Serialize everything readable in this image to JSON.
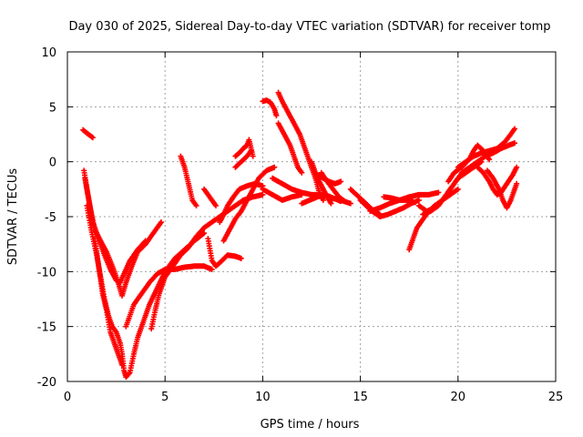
{
  "chart_data": {
    "type": "scatter",
    "title": "Day 030 of 2025, Sidereal Day-to-day VTEC variation (SDTVAR) for receiver tomp",
    "xlabel": "GPS time / hours",
    "ylabel": "SDTVAR / TECUs",
    "xlim": [
      0,
      25
    ],
    "ylim": [
      -20,
      10
    ],
    "xticks": [
      0,
      5,
      10,
      15,
      20,
      25
    ],
    "yticks": [
      -20,
      -15,
      -10,
      -5,
      0,
      5,
      10
    ],
    "grid": true,
    "marker": "+",
    "color": "#ff0000",
    "series": [
      {
        "points": [
          [
            0.8,
            2.9
          ],
          [
            1.0,
            2.6
          ],
          [
            1.3,
            2.2
          ]
        ]
      },
      {
        "points": [
          [
            0.85,
            -0.8
          ],
          [
            1.0,
            -2.5
          ],
          [
            1.2,
            -4.5
          ],
          [
            1.4,
            -6.2
          ],
          [
            1.7,
            -7.2
          ],
          [
            2.0,
            -8.2
          ],
          [
            2.3,
            -9.5
          ],
          [
            2.6,
            -11.0
          ],
          [
            2.8,
            -12.2
          ],
          [
            3.0,
            -11.0
          ],
          [
            3.3,
            -9.5
          ],
          [
            3.6,
            -8.2
          ],
          [
            4.0,
            -7.5
          ],
          [
            4.4,
            -6.5
          ],
          [
            4.8,
            -5.5
          ]
        ]
      },
      {
        "points": [
          [
            0.9,
            -1.5
          ],
          [
            1.1,
            -3.5
          ],
          [
            1.3,
            -5.5
          ],
          [
            1.6,
            -7.0
          ],
          [
            1.9,
            -8.5
          ],
          [
            2.2,
            -9.8
          ],
          [
            2.5,
            -10.8
          ],
          [
            2.7,
            -11.0
          ],
          [
            2.9,
            -10.2
          ],
          [
            3.2,
            -9.0
          ],
          [
            3.6,
            -8.0
          ],
          [
            4.0,
            -7.2
          ]
        ]
      },
      {
        "points": [
          [
            1.0,
            -4.0
          ],
          [
            1.2,
            -6.0
          ],
          [
            1.5,
            -8.5
          ],
          [
            1.7,
            -10.5
          ],
          [
            1.9,
            -12.5
          ],
          [
            2.1,
            -14.0
          ],
          [
            2.3,
            -15.0
          ],
          [
            2.5,
            -15.5
          ],
          [
            2.7,
            -16.5
          ],
          [
            2.8,
            -17.5
          ],
          [
            2.9,
            -19.0
          ],
          [
            3.0,
            -19.6
          ],
          [
            3.2,
            -19.2
          ],
          [
            3.4,
            -17.5
          ],
          [
            3.6,
            -16.0
          ],
          [
            3.9,
            -14.5
          ],
          [
            4.2,
            -13.0
          ],
          [
            4.6,
            -11.5
          ],
          [
            5.0,
            -10.0
          ],
          [
            5.5,
            -8.8
          ],
          [
            6.0,
            -8.0
          ],
          [
            6.5,
            -7.2
          ],
          [
            7.0,
            -6.5
          ]
        ]
      },
      {
        "points": [
          [
            1.4,
            -7.0
          ],
          [
            1.6,
            -9.5
          ],
          [
            1.8,
            -12.0
          ],
          [
            2.0,
            -13.5
          ],
          [
            2.2,
            -15.5
          ],
          [
            2.4,
            -16.5
          ],
          [
            2.6,
            -17.5
          ],
          [
            2.8,
            -18.5
          ]
        ]
      },
      {
        "points": [
          [
            4.3,
            -15.2
          ],
          [
            4.5,
            -13.5
          ],
          [
            4.7,
            -12.0
          ],
          [
            5.0,
            -10.5
          ],
          [
            5.4,
            -9.5
          ],
          [
            5.8,
            -8.5
          ],
          [
            6.2,
            -7.8
          ],
          [
            6.6,
            -6.8
          ],
          [
            7.0,
            -6.0
          ],
          [
            7.4,
            -5.5
          ],
          [
            7.8,
            -5.0
          ],
          [
            8.2,
            -4.5
          ],
          [
            8.6,
            -4.0
          ],
          [
            9.0,
            -3.5
          ],
          [
            9.5,
            -3.2
          ],
          [
            10.0,
            -3.0
          ]
        ]
      },
      {
        "points": [
          [
            3.0,
            -15.0
          ],
          [
            3.4,
            -13.0
          ],
          [
            3.8,
            -12.0
          ],
          [
            4.2,
            -11.0
          ],
          [
            4.6,
            -10.2
          ],
          [
            5.0,
            -9.8
          ],
          [
            5.5,
            -9.8
          ],
          [
            6.0,
            -9.6
          ],
          [
            6.5,
            -9.5
          ],
          [
            7.0,
            -9.5
          ],
          [
            7.4,
            -9.8
          ]
        ]
      },
      {
        "points": [
          [
            5.8,
            0.5
          ],
          [
            6.0,
            -0.5
          ],
          [
            6.2,
            -2.0
          ],
          [
            6.4,
            -3.5
          ],
          [
            6.6,
            -4.0
          ]
        ]
      },
      {
        "points": [
          [
            7.0,
            -2.5
          ],
          [
            7.2,
            -3.0
          ],
          [
            7.4,
            -3.5
          ],
          [
            7.6,
            -4.0
          ]
        ]
      },
      {
        "points": [
          [
            7.2,
            -7.0
          ],
          [
            7.4,
            -9.0
          ],
          [
            7.6,
            -9.5
          ],
          [
            7.8,
            -9.2
          ],
          [
            8.2,
            -8.5
          ],
          [
            8.6,
            -8.6
          ],
          [
            8.9,
            -8.8
          ]
        ]
      },
      {
        "points": [
          [
            7.8,
            -5.5
          ],
          [
            8.0,
            -4.8
          ],
          [
            8.2,
            -4.0
          ],
          [
            8.5,
            -3.2
          ],
          [
            8.8,
            -2.5
          ],
          [
            9.2,
            -2.2
          ],
          [
            9.6,
            -2.0
          ],
          [
            10.0,
            -2.2
          ]
        ]
      },
      {
        "points": [
          [
            8.0,
            -7.2
          ],
          [
            8.3,
            -6.2
          ],
          [
            8.6,
            -5.2
          ],
          [
            8.9,
            -4.5
          ],
          [
            9.2,
            -3.5
          ],
          [
            9.5,
            -2.5
          ],
          [
            9.8,
            -1.5
          ],
          [
            10.2,
            -0.8
          ],
          [
            10.6,
            -0.5
          ]
        ]
      },
      {
        "points": [
          [
            8.6,
            0.5
          ],
          [
            8.8,
            0.8
          ],
          [
            9.0,
            1.2
          ],
          [
            9.2,
            1.5
          ],
          [
            9.3,
            2.0
          ],
          [
            9.5,
            0.5
          ]
        ]
      },
      {
        "points": [
          [
            8.6,
            -0.5
          ],
          [
            8.9,
            0.0
          ],
          [
            9.2,
            0.5
          ],
          [
            9.4,
            1.0
          ]
        ]
      },
      {
        "points": [
          [
            10.0,
            5.5
          ],
          [
            10.2,
            5.6
          ],
          [
            10.4,
            5.4
          ],
          [
            10.6,
            4.8
          ],
          [
            10.7,
            4.2
          ]
        ]
      },
      {
        "points": [
          [
            10.0,
            -2.5
          ],
          [
            10.5,
            -3.0
          ],
          [
            11.0,
            -3.5
          ],
          [
            11.5,
            -3.2
          ],
          [
            12.0,
            -3.0
          ]
        ]
      },
      {
        "points": [
          [
            10.8,
            6.3
          ],
          [
            11.0,
            5.5
          ],
          [
            11.3,
            4.5
          ],
          [
            11.6,
            3.5
          ],
          [
            11.9,
            2.5
          ],
          [
            12.1,
            1.5
          ],
          [
            12.3,
            0.5
          ],
          [
            12.5,
            -0.5
          ],
          [
            12.7,
            -1.5
          ],
          [
            12.9,
            -2.8
          ],
          [
            13.1,
            -3.5
          ]
        ]
      },
      {
        "points": [
          [
            10.8,
            3.5
          ],
          [
            11.1,
            2.5
          ],
          [
            11.4,
            1.5
          ],
          [
            11.6,
            0.5
          ],
          [
            11.8,
            -0.5
          ],
          [
            12.0,
            -1.0
          ]
        ]
      },
      {
        "points": [
          [
            10.5,
            -1.5
          ],
          [
            11.0,
            -2.0
          ],
          [
            11.5,
            -2.5
          ],
          [
            12.0,
            -2.8
          ],
          [
            12.5,
            -3.0
          ],
          [
            13.0,
            -3.0
          ],
          [
            13.5,
            -3.3
          ],
          [
            14.0,
            -3.5
          ],
          [
            14.5,
            -3.8
          ]
        ]
      },
      {
        "points": [
          [
            12.5,
            0.0
          ],
          [
            12.7,
            -1.0
          ],
          [
            12.9,
            -1.8
          ],
          [
            13.1,
            -2.5
          ],
          [
            13.3,
            -3.2
          ],
          [
            13.5,
            -3.8
          ]
        ]
      },
      {
        "points": [
          [
            12.8,
            -1.2
          ],
          [
            13.1,
            -1.5
          ],
          [
            13.4,
            -1.8
          ],
          [
            13.7,
            -2.0
          ],
          [
            14.0,
            -1.8
          ]
        ]
      },
      {
        "points": [
          [
            13.0,
            -1.0
          ],
          [
            13.3,
            -1.8
          ],
          [
            13.6,
            -2.5
          ],
          [
            13.9,
            -3.2
          ],
          [
            14.2,
            -3.6
          ]
        ]
      },
      {
        "points": [
          [
            12.0,
            -3.8
          ],
          [
            12.4,
            -3.5
          ],
          [
            12.8,
            -3.2
          ],
          [
            13.2,
            -3.0
          ],
          [
            13.6,
            -3.3
          ],
          [
            14.0,
            -3.6
          ]
        ]
      },
      {
        "points": [
          [
            14.5,
            -2.5
          ],
          [
            14.8,
            -3.0
          ],
          [
            15.1,
            -3.5
          ],
          [
            15.4,
            -4.0
          ],
          [
            15.7,
            -4.5
          ],
          [
            16.0,
            -4.8
          ]
        ]
      },
      {
        "points": [
          [
            15.0,
            -3.5
          ],
          [
            15.3,
            -4.0
          ],
          [
            15.6,
            -4.5
          ],
          [
            16.0,
            -5.0
          ],
          [
            16.4,
            -4.8
          ],
          [
            16.8,
            -4.5
          ],
          [
            17.2,
            -4.2
          ],
          [
            17.6,
            -3.8
          ],
          [
            18.0,
            -3.5
          ]
        ]
      },
      {
        "points": [
          [
            15.5,
            -4.5
          ],
          [
            16.0,
            -4.2
          ],
          [
            16.5,
            -3.8
          ],
          [
            17.0,
            -3.5
          ],
          [
            17.5,
            -3.2
          ],
          [
            18.0,
            -3.0
          ],
          [
            18.5,
            -3.0
          ],
          [
            19.0,
            -2.8
          ]
        ]
      },
      {
        "points": [
          [
            16.2,
            -3.2
          ],
          [
            16.6,
            -3.3
          ],
          [
            17.0,
            -3.5
          ],
          [
            17.4,
            -3.5
          ],
          [
            17.8,
            -3.7
          ]
        ]
      },
      {
        "points": [
          [
            17.5,
            -8.0
          ],
          [
            17.7,
            -7.0
          ],
          [
            17.9,
            -6.0
          ],
          [
            18.1,
            -5.5
          ],
          [
            18.3,
            -5.0
          ],
          [
            18.5,
            -4.5
          ],
          [
            18.8,
            -4.0
          ],
          [
            19.2,
            -3.5
          ],
          [
            19.6,
            -3.0
          ],
          [
            20.0,
            -2.5
          ]
        ]
      },
      {
        "points": [
          [
            18.0,
            -4.0
          ],
          [
            18.4,
            -4.5
          ],
          [
            18.8,
            -4.2
          ],
          [
            19.2,
            -3.5
          ],
          [
            19.6,
            -2.5
          ],
          [
            20.0,
            -1.5
          ],
          [
            20.4,
            -1.0
          ],
          [
            20.8,
            -0.5
          ],
          [
            21.2,
            0.0
          ]
        ]
      },
      {
        "points": [
          [
            18.2,
            -4.8
          ],
          [
            18.6,
            -4.5
          ],
          [
            19.0,
            -4.0
          ],
          [
            19.4,
            -3.0
          ],
          [
            19.8,
            -2.0
          ],
          [
            20.2,
            -1.0
          ],
          [
            20.6,
            -0.5
          ],
          [
            21.0,
            0.0
          ],
          [
            21.4,
            0.5
          ],
          [
            21.8,
            0.8
          ],
          [
            22.2,
            1.2
          ],
          [
            22.6,
            1.5
          ],
          [
            22.9,
            1.7
          ]
        ]
      },
      {
        "points": [
          [
            19.5,
            -1.8
          ],
          [
            19.8,
            -1.0
          ],
          [
            20.2,
            -0.5
          ],
          [
            20.6,
            0.3
          ],
          [
            20.8,
            1.0
          ],
          [
            21.0,
            1.5
          ],
          [
            21.3,
            1.0
          ],
          [
            21.6,
            0.2
          ]
        ]
      },
      {
        "points": [
          [
            20.0,
            -0.5
          ],
          [
            20.4,
            0.0
          ],
          [
            20.8,
            0.5
          ],
          [
            21.2,
            0.8
          ],
          [
            21.6,
            1.0
          ],
          [
            22.0,
            1.2
          ],
          [
            22.4,
            1.8
          ],
          [
            22.7,
            2.5
          ],
          [
            22.9,
            3.0
          ]
        ]
      },
      {
        "points": [
          [
            21.0,
            -0.5
          ],
          [
            21.3,
            -1.0
          ],
          [
            21.6,
            -1.8
          ],
          [
            21.8,
            -2.5
          ],
          [
            22.0,
            -3.0
          ],
          [
            22.2,
            -2.8
          ],
          [
            22.5,
            -2.0
          ],
          [
            22.8,
            -1.2
          ],
          [
            23.0,
            -0.5
          ]
        ]
      },
      {
        "points": [
          [
            21.5,
            -0.8
          ],
          [
            21.8,
            -1.5
          ],
          [
            22.1,
            -2.5
          ],
          [
            22.3,
            -3.5
          ],
          [
            22.5,
            -4.2
          ],
          [
            22.7,
            -3.5
          ],
          [
            22.9,
            -2.5
          ],
          [
            23.0,
            -2.0
          ]
        ]
      }
    ]
  }
}
